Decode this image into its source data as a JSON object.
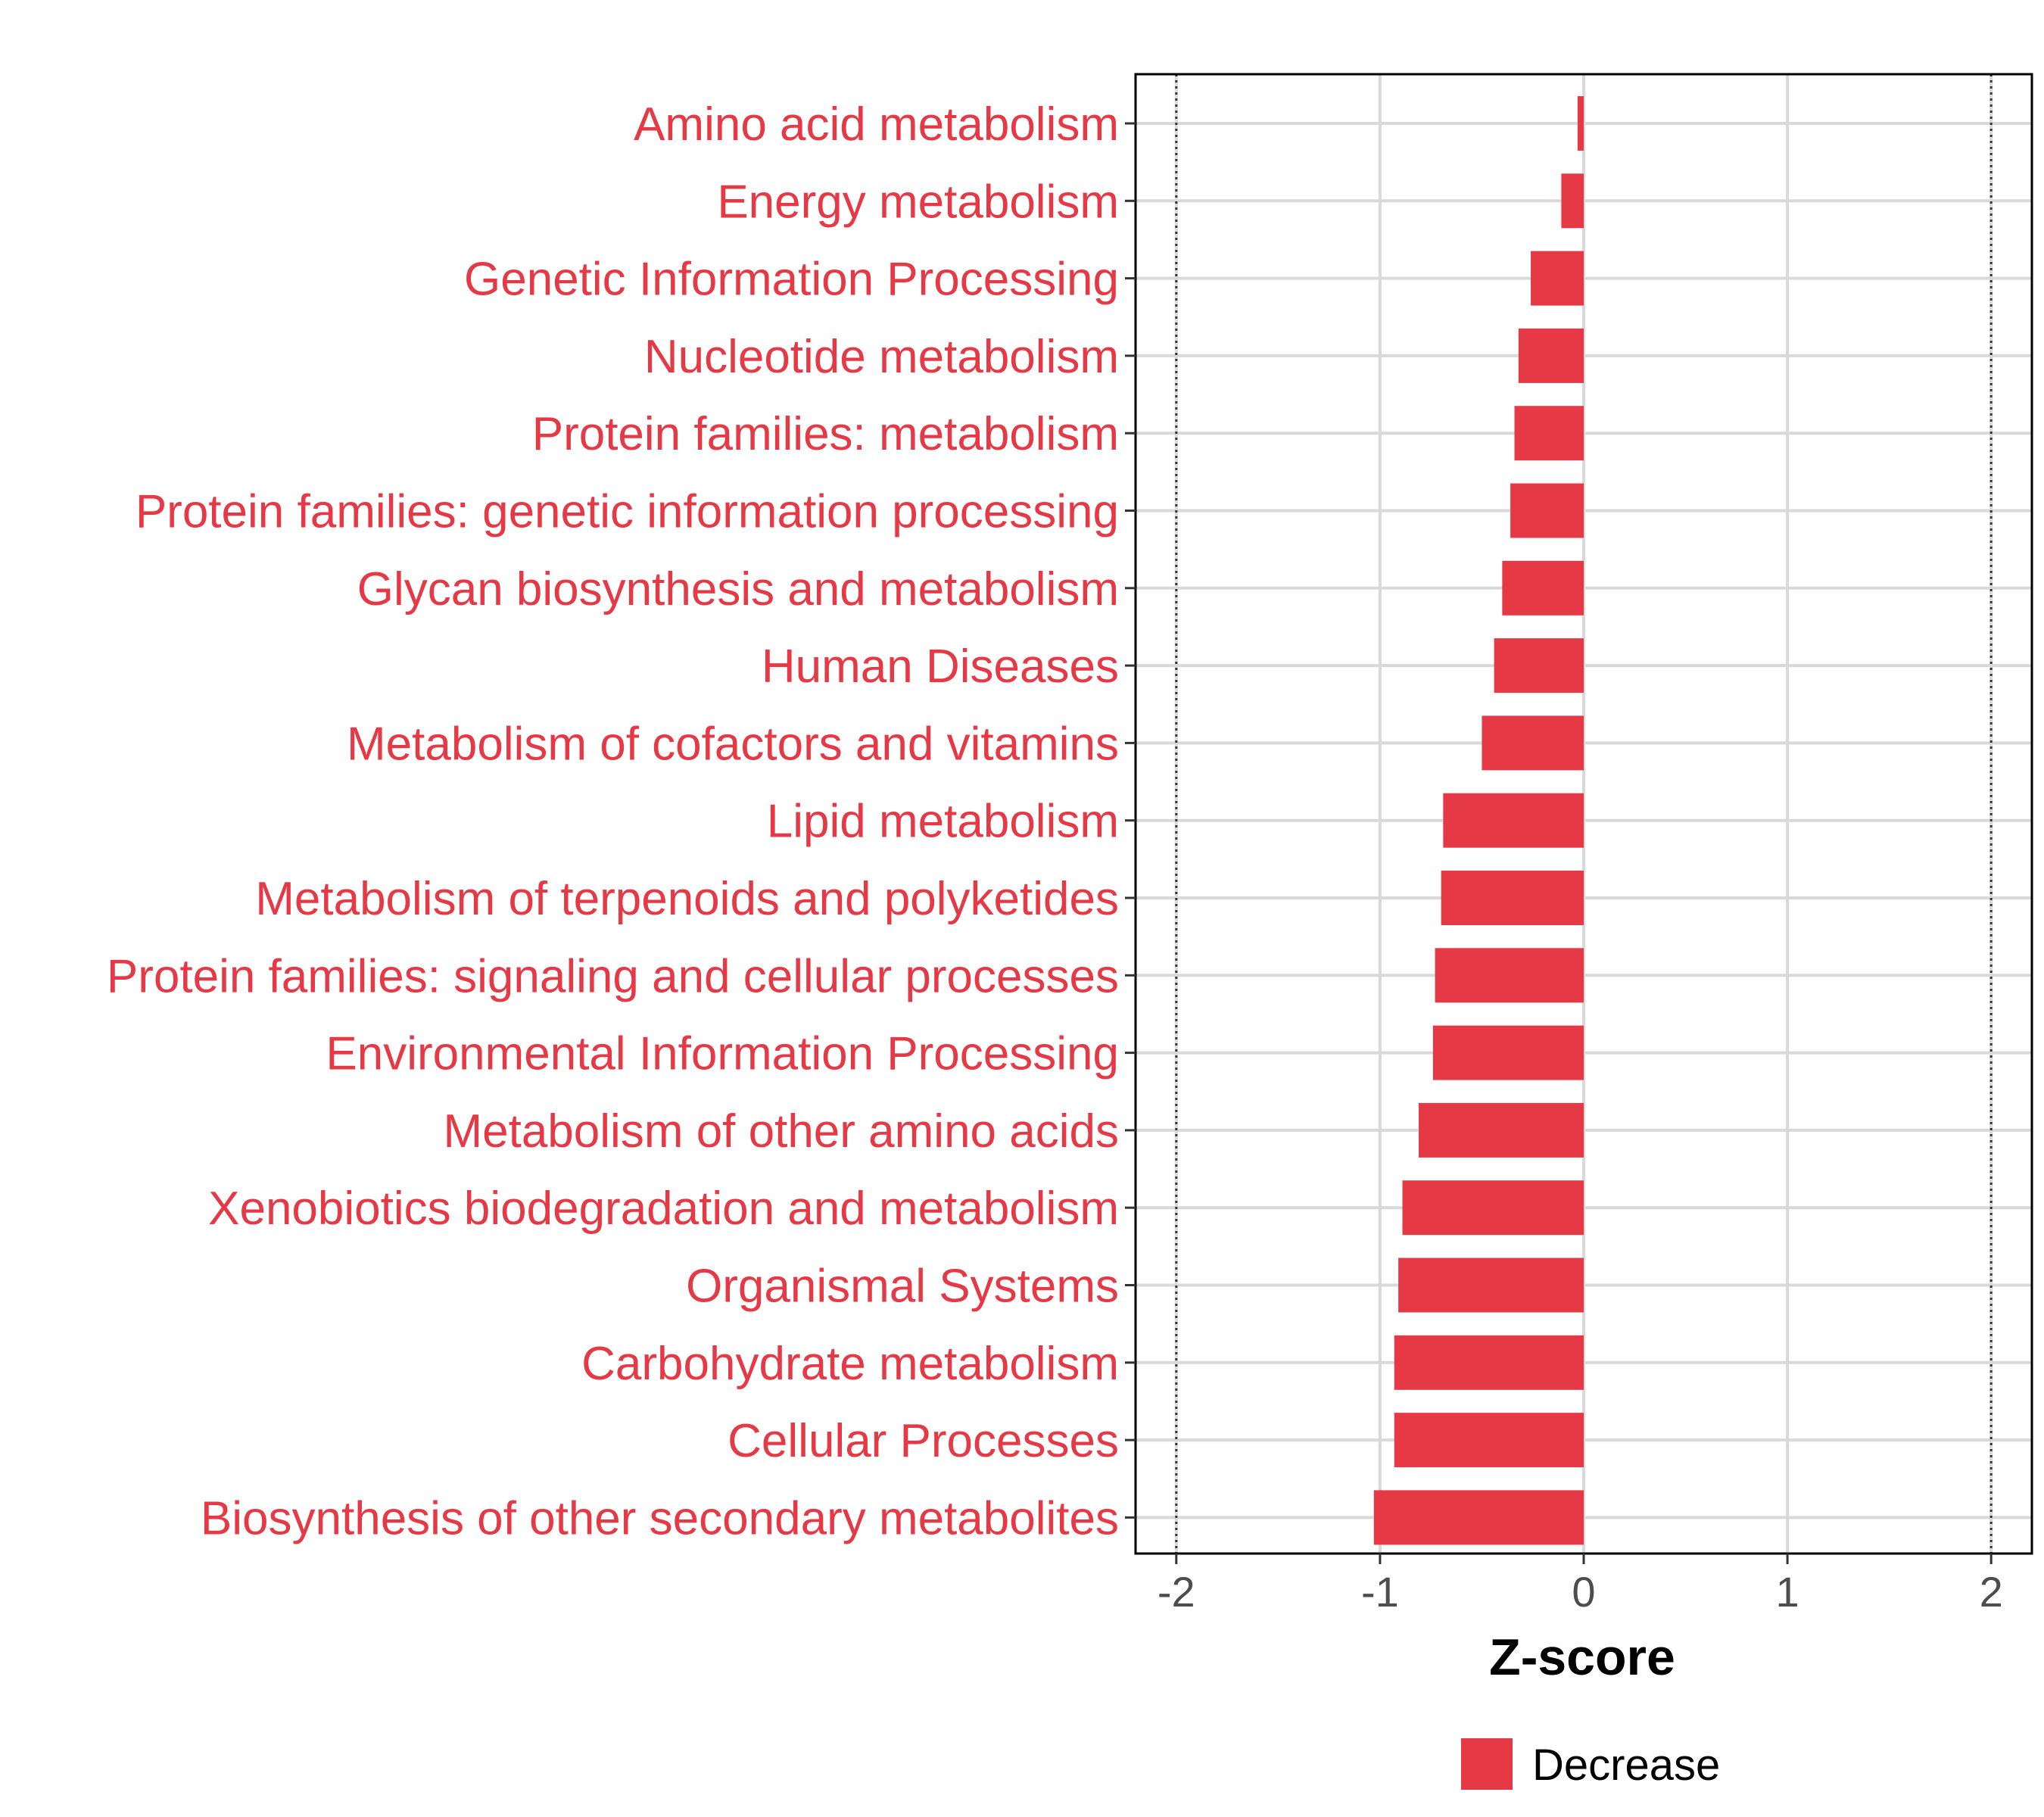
{
  "chart_data": {
    "type": "bar",
    "orientation": "horizontal",
    "title": "",
    "xlabel": "Z-score",
    "ylabel": "",
    "xlim": [
      -2.2,
      2.2
    ],
    "x_ticks": [
      -2,
      -1,
      0,
      1,
      2
    ],
    "x_tick_labels": [
      "-2",
      "-1",
      "0",
      "1",
      "2"
    ],
    "reference_lines": [
      -2,
      2
    ],
    "grid": true,
    "categories": [
      "Amino acid metabolism",
      "Energy metabolism",
      "Genetic Information Processing",
      "Nucleotide metabolism",
      "Protein families: metabolism",
      "Protein families: genetic information processing",
      "Glycan biosynthesis and metabolism",
      "Human Diseases",
      "Metabolism of cofactors and vitamins",
      "Lipid metabolism",
      "Metabolism of terpenoids and polyketides",
      "Protein families: signaling and cellular processes",
      "Environmental Information Processing",
      "Metabolism of other amino acids",
      "Xenobiotics biodegradation and metabolism",
      "Organismal Systems",
      "Carbohydrate metabolism",
      "Cellular Processes",
      "Biosynthesis of other secondary metabolites"
    ],
    "series": [
      {
        "name": "Decrease",
        "color": "#e63946",
        "values": [
          -0.03,
          -0.11,
          -0.26,
          -0.32,
          -0.34,
          -0.36,
          -0.4,
          -0.44,
          -0.5,
          -0.69,
          -0.7,
          -0.73,
          -0.74,
          -0.81,
          -0.89,
          -0.91,
          -0.93,
          -0.93,
          -1.03
        ]
      }
    ],
    "legend": {
      "position": "bottom",
      "entries": [
        "Decrease"
      ]
    },
    "colors": {
      "bar": "#e63946",
      "category_text": "#e63946",
      "grid": "#d9d9d9",
      "frame": "#000000",
      "tick_text": "#4d4d4d"
    }
  }
}
